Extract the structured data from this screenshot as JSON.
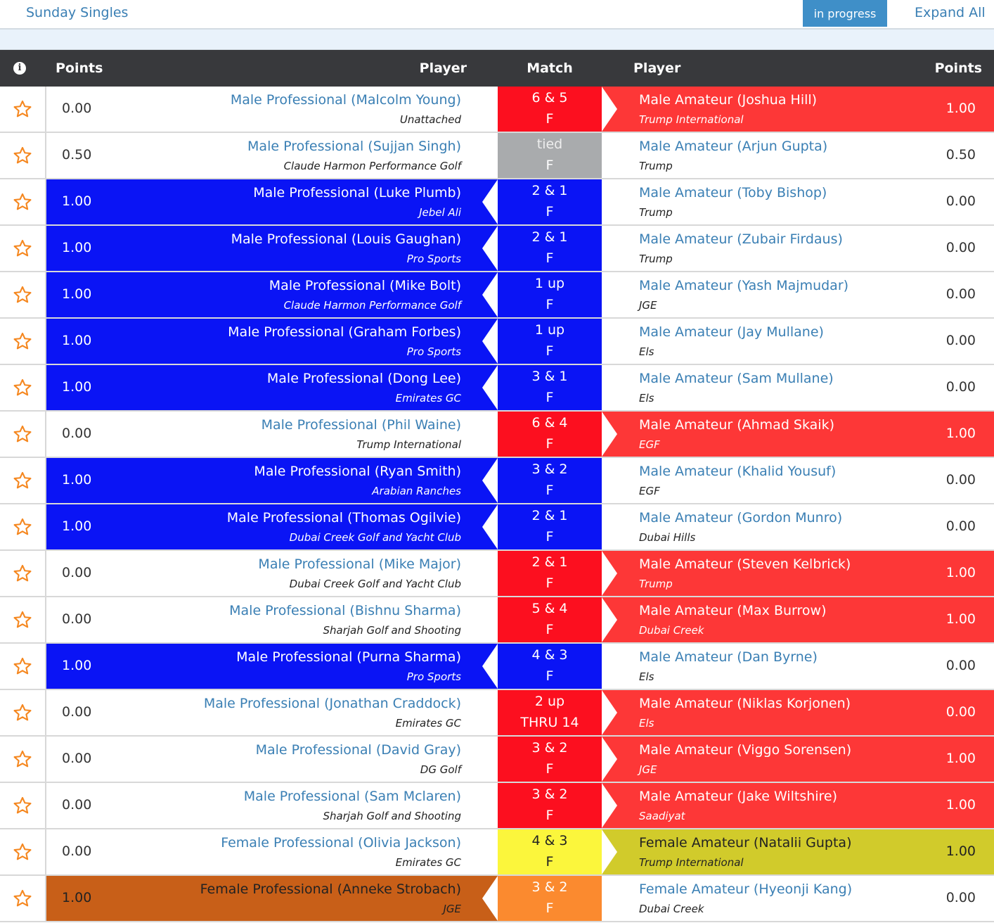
{
  "header": {
    "title": "Sunday Singles",
    "status": "in progress",
    "expand_label": "Expand All"
  },
  "table": {
    "columns": {
      "info": "i",
      "points_left": "Points",
      "player_left": "Player",
      "match": "Match",
      "player_right": "Player",
      "points_right": "Points"
    },
    "rows": [
      {
        "lp": "0.00",
        "ln": "Male Professional (Malcolm Young)",
        "lc": "Unattached",
        "m1": "6 & 5",
        "m2": "F",
        "rn": "Male Amateur (Joshua Hill)",
        "rc": "Trump International",
        "rp": "1.00",
        "style": "win-r"
      },
      {
        "lp": "0.50",
        "ln": "Male Professional (Sujjan Singh)",
        "lc": "Claude Harmon Performance Golf",
        "m1": "tied",
        "m2": "F",
        "rn": "Male Amateur (Arjun Gupta)",
        "rc": "Trump",
        "rp": "0.50",
        "style": "tie"
      },
      {
        "lp": "1.00",
        "ln": "Male Professional (Luke Plumb)",
        "lc": "Jebel Ali",
        "m1": "2 & 1",
        "m2": "F",
        "rn": "Male Amateur (Toby Bishop)",
        "rc": "Trump",
        "rp": "0.00",
        "style": "win-l"
      },
      {
        "lp": "1.00",
        "ln": "Male Professional (Louis Gaughan)",
        "lc": "Pro Sports",
        "m1": "2 & 1",
        "m2": "F",
        "rn": "Male Amateur (Zubair Firdaus)",
        "rc": "Trump",
        "rp": "0.00",
        "style": "win-l"
      },
      {
        "lp": "1.00",
        "ln": "Male Professional (Mike Bolt)",
        "lc": "Claude Harmon Performance Golf",
        "m1": "1 up",
        "m2": "F",
        "rn": "Male Amateur (Yash Majmudar)",
        "rc": "JGE",
        "rp": "0.00",
        "style": "win-l"
      },
      {
        "lp": "1.00",
        "ln": "Male Professional (Graham Forbes)",
        "lc": "Pro Sports",
        "m1": "1 up",
        "m2": "F",
        "rn": "Male Amateur (Jay Mullane)",
        "rc": "Els",
        "rp": "0.00",
        "style": "win-l"
      },
      {
        "lp": "1.00",
        "ln": "Male Professional (Dong Lee)",
        "lc": "Emirates GC",
        "m1": "3 & 1",
        "m2": "F",
        "rn": "Male Amateur (Sam Mullane)",
        "rc": "Els",
        "rp": "0.00",
        "style": "win-l"
      },
      {
        "lp": "0.00",
        "ln": "Male Professional (Phil Waine)",
        "lc": "Trump International",
        "m1": "6 & 4",
        "m2": "F",
        "rn": "Male Amateur (Ahmad Skaik)",
        "rc": "EGF",
        "rp": "1.00",
        "style": "win-r"
      },
      {
        "lp": "1.00",
        "ln": "Male Professional (Ryan Smith)",
        "lc": "Arabian Ranches",
        "m1": "3 & 2",
        "m2": "F",
        "rn": "Male Amateur (Khalid Yousuf)",
        "rc": "EGF",
        "rp": "0.00",
        "style": "win-l"
      },
      {
        "lp": "1.00",
        "ln": "Male Professional (Thomas Ogilvie)",
        "lc": "Dubai Creek Golf and Yacht Club",
        "m1": "2 & 1",
        "m2": "F",
        "rn": "Male Amateur (Gordon Munro)",
        "rc": "Dubai Hills",
        "rp": "0.00",
        "style": "win-l"
      },
      {
        "lp": "0.00",
        "ln": "Male Professional (Mike Major)",
        "lc": "Dubai Creek Golf and Yacht Club",
        "m1": "2 & 1",
        "m2": "F",
        "rn": "Male Amateur (Steven Kelbrick)",
        "rc": "Trump",
        "rp": "1.00",
        "style": "win-r"
      },
      {
        "lp": "0.00",
        "ln": "Male Professional (Bishnu Sharma)",
        "lc": "Sharjah Golf and Shooting",
        "m1": "5 & 4",
        "m2": "F",
        "rn": "Male Amateur (Max Burrow)",
        "rc": "Dubai Creek",
        "rp": "1.00",
        "style": "win-r"
      },
      {
        "lp": "1.00",
        "ln": "Male Professional (Purna Sharma)",
        "lc": "Pro Sports",
        "m1": "4 & 3",
        "m2": "F",
        "rn": "Male Amateur (Dan Byrne)",
        "rc": "Els",
        "rp": "0.00",
        "style": "win-l"
      },
      {
        "lp": "0.00",
        "ln": "Male Professional (Jonathan Craddock)",
        "lc": "Emirates GC",
        "m1": "2 up",
        "m2": "THRU 14",
        "rn": "Male Amateur (Niklas Korjonen)",
        "rc": "Els",
        "rp": "0.00",
        "style": "win-r"
      },
      {
        "lp": "0.00",
        "ln": "Male Professional (David Gray)",
        "lc": "DG Golf",
        "m1": "3 & 2",
        "m2": "F",
        "rn": "Male Amateur (Viggo Sorensen)",
        "rc": "JGE",
        "rp": "1.00",
        "style": "win-r"
      },
      {
        "lp": "0.00",
        "ln": "Male Professional (Sam Mclaren)",
        "lc": "Sharjah Golf and Shooting",
        "m1": "3 & 2",
        "m2": "F",
        "rn": "Male Amateur (Jake Wiltshire)",
        "rc": "Saadiyat",
        "rp": "1.00",
        "style": "win-r"
      },
      {
        "lp": "0.00",
        "ln": "Female Professional (Olivia Jackson)",
        "lc": "Emirates GC",
        "m1": "4 & 3",
        "m2": "F",
        "rn": "Female Amateur (Natalii Gupta)",
        "rc": "Trump International",
        "rp": "1.00",
        "style": "ywin"
      },
      {
        "lp": "1.00",
        "ln": "Female Professional (Anneke Strobach)",
        "lc": "JGE",
        "m1": "3 & 2",
        "m2": "F",
        "rn": "Female Amateur (Hyeonji Kang)",
        "rc": "Dubai Creek",
        "rp": "0.00",
        "style": "owin"
      }
    ]
  },
  "colors": {
    "link": "#3a7fb4",
    "pro_win": "#0a14f5",
    "am_win": "#fd3737",
    "tie": "#a9abad",
    "star": "#f5871f"
  },
  "icons": {
    "info": "info-icon",
    "favorite": "star-icon"
  }
}
